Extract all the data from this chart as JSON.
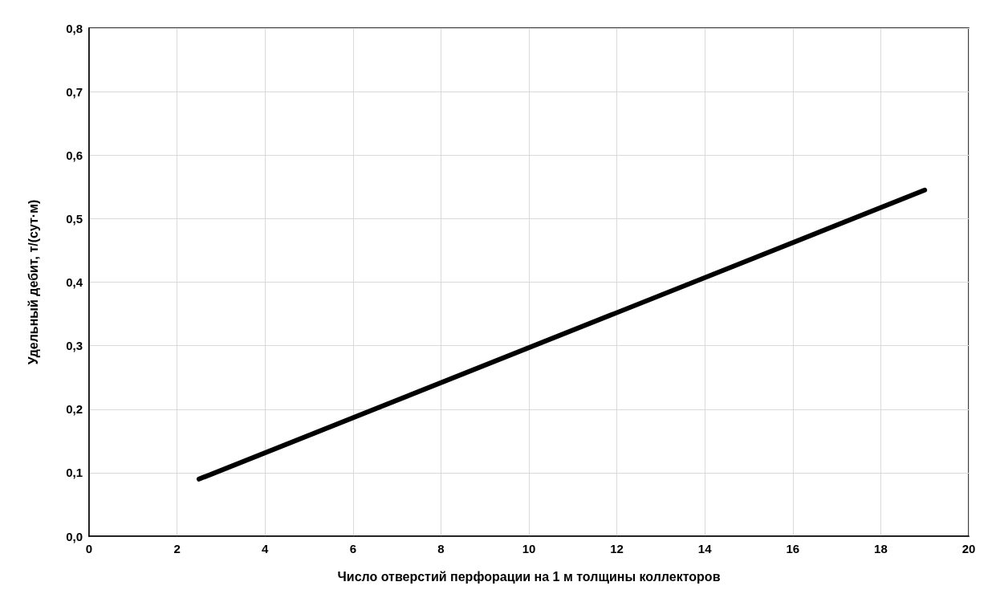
{
  "chart_data": {
    "type": "line",
    "xlabel": "Число отверстий перфорации на 1 м толщины коллекторов",
    "ylabel": "Удельный дебит, т/(сут·м)",
    "x": [
      2.5,
      19
    ],
    "series": [
      {
        "color": "#000000",
        "values": [
          0.09,
          0.545
        ]
      }
    ],
    "xlim": [
      0,
      20
    ],
    "xticks": [
      0,
      2,
      4,
      6,
      8,
      10,
      12,
      14,
      16,
      18,
      20
    ],
    "ylim": [
      0,
      0.8
    ],
    "yticks": [
      {
        "value": 0,
        "label": "0,0"
      },
      {
        "value": 0.1,
        "label": "0,1"
      },
      {
        "value": 0.2,
        "label": "0,2"
      },
      {
        "value": 0.3,
        "label": "0,3"
      },
      {
        "value": 0.4,
        "label": "0,4"
      },
      {
        "value": 0.5,
        "label": "0,5"
      },
      {
        "value": 0.6,
        "label": "0,6"
      },
      {
        "value": 0.7,
        "label": "0,7"
      },
      {
        "value": 0.8,
        "label": "0,8"
      }
    ],
    "grid": true,
    "marker": "none",
    "line_style": "solid"
  }
}
